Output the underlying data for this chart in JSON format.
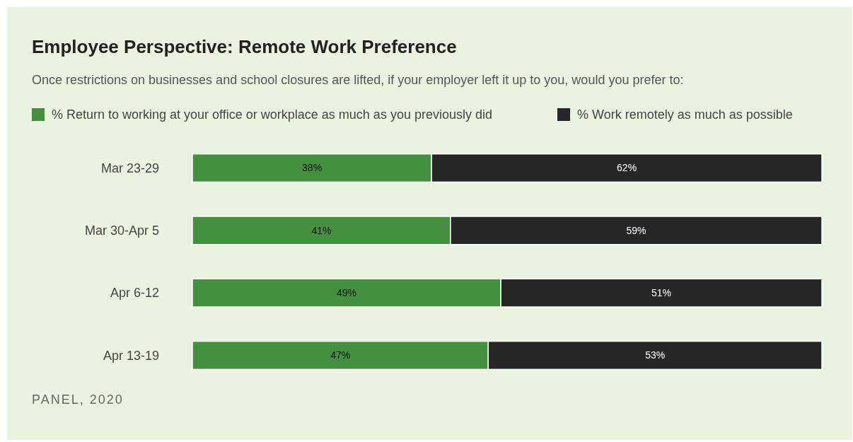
{
  "chart_data": {
    "type": "bar",
    "orientation": "horizontal",
    "stacked": true,
    "legend": "top left",
    "title": "Employee Perspective: Remote Work Preference",
    "subtitle": "Once restrictions on businesses and school closures are lifted, if your employer left it up to you, would you prefer to:",
    "annotations": [
      "PANEL, 2020"
    ],
    "categories": [
      "Mar 23-29",
      "Mar 30-Apr 5",
      "Apr 6-12",
      "Apr 13-19"
    ],
    "series": [
      {
        "name": "% Return to working at your office or workplace as much as you previously did",
        "color": "#43913f",
        "values": [
          38,
          41,
          49,
          47
        ],
        "value_labels": [
          "38%",
          "41%",
          "49%",
          "47%"
        ]
      },
      {
        "name": "% Work remotely as much as possible",
        "color": "#262626",
        "values": [
          62,
          59,
          51,
          53
        ],
        "value_labels": [
          "62%",
          "59%",
          "51%",
          "53%"
        ]
      }
    ]
  }
}
